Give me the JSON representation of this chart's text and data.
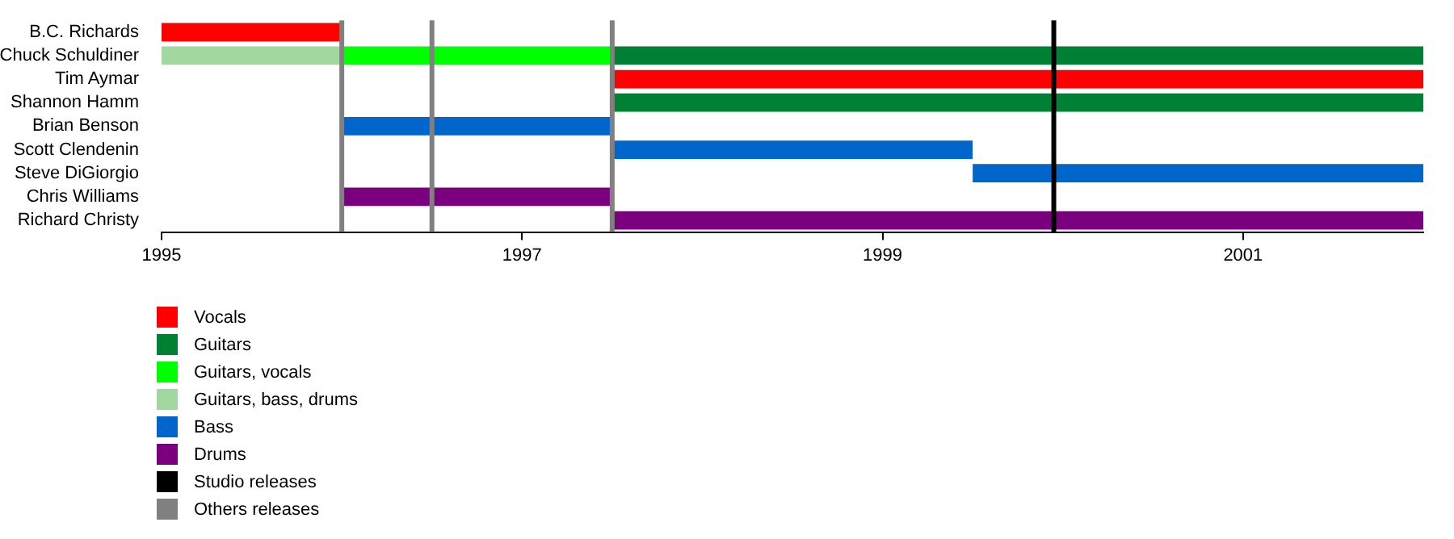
{
  "chart_data": {
    "type": "bar",
    "orientation": "horizontal",
    "categories": [
      "B.C. Richards",
      "Chuck Schuldiner",
      "Tim Aymar",
      "Shannon Hamm",
      "Brian Benson",
      "Scott Clendenin",
      "Steve DiGiorgio",
      "Chris Williams",
      "Richard Christy"
    ],
    "series": [
      {
        "name": "Vocals",
        "color": "#ff0000",
        "base": [
          1995,
          null,
          1997.5,
          null,
          null,
          null,
          null,
          null,
          null
        ],
        "values": [
          1,
          null,
          4.5,
          null,
          null,
          null,
          null,
          null,
          null
        ]
      },
      {
        "name": "Guitars",
        "color": "#008033",
        "base": [
          null,
          1997.5,
          null,
          1997.5,
          null,
          null,
          null,
          null,
          null
        ],
        "values": [
          null,
          4.5,
          null,
          4.5,
          null,
          null,
          null,
          null,
          null
        ]
      },
      {
        "name": "Guitars, vocals",
        "color": "#00ff00",
        "base": [
          null,
          1996,
          null,
          null,
          null,
          null,
          null,
          null,
          null
        ],
        "values": [
          null,
          1.5,
          null,
          null,
          null,
          null,
          null,
          null,
          null
        ]
      },
      {
        "name": "Guitars, bass, drums",
        "color": "#a0d8a0",
        "base": [
          null,
          1995,
          null,
          null,
          null,
          null,
          null,
          null,
          null
        ],
        "values": [
          null,
          1,
          null,
          null,
          null,
          null,
          null,
          null,
          null
        ]
      },
      {
        "name": "Bass",
        "color": "#0066cc",
        "base": [
          null,
          null,
          null,
          null,
          1996,
          1997.5,
          1999.5,
          null,
          null
        ],
        "values": [
          null,
          null,
          null,
          null,
          1.5,
          2,
          2.5,
          null,
          null
        ]
      },
      {
        "name": "Drums",
        "color": "#7a0080",
        "base": [
          null,
          null,
          null,
          null,
          null,
          null,
          null,
          1996,
          1997.5
        ],
        "values": [
          null,
          null,
          null,
          null,
          null,
          null,
          null,
          1.5,
          4.5
        ]
      }
    ],
    "ref_lines": [
      {
        "axis": "x",
        "value": 1999.95,
        "label": "Studio releases",
        "color": "#000000"
      },
      {
        "axis": "x",
        "value": 1996,
        "label": "Others releases",
        "color": "#808080"
      },
      {
        "axis": "x",
        "value": 1996.5,
        "color": "#808080"
      },
      {
        "axis": "x",
        "value": 1997.5,
        "color": "#808080"
      }
    ],
    "xlim": [
      1995,
      2002
    ],
    "xticks": [
      1995,
      1997,
      1999,
      2001
    ],
    "grid": false,
    "legend": "bottom left"
  }
}
